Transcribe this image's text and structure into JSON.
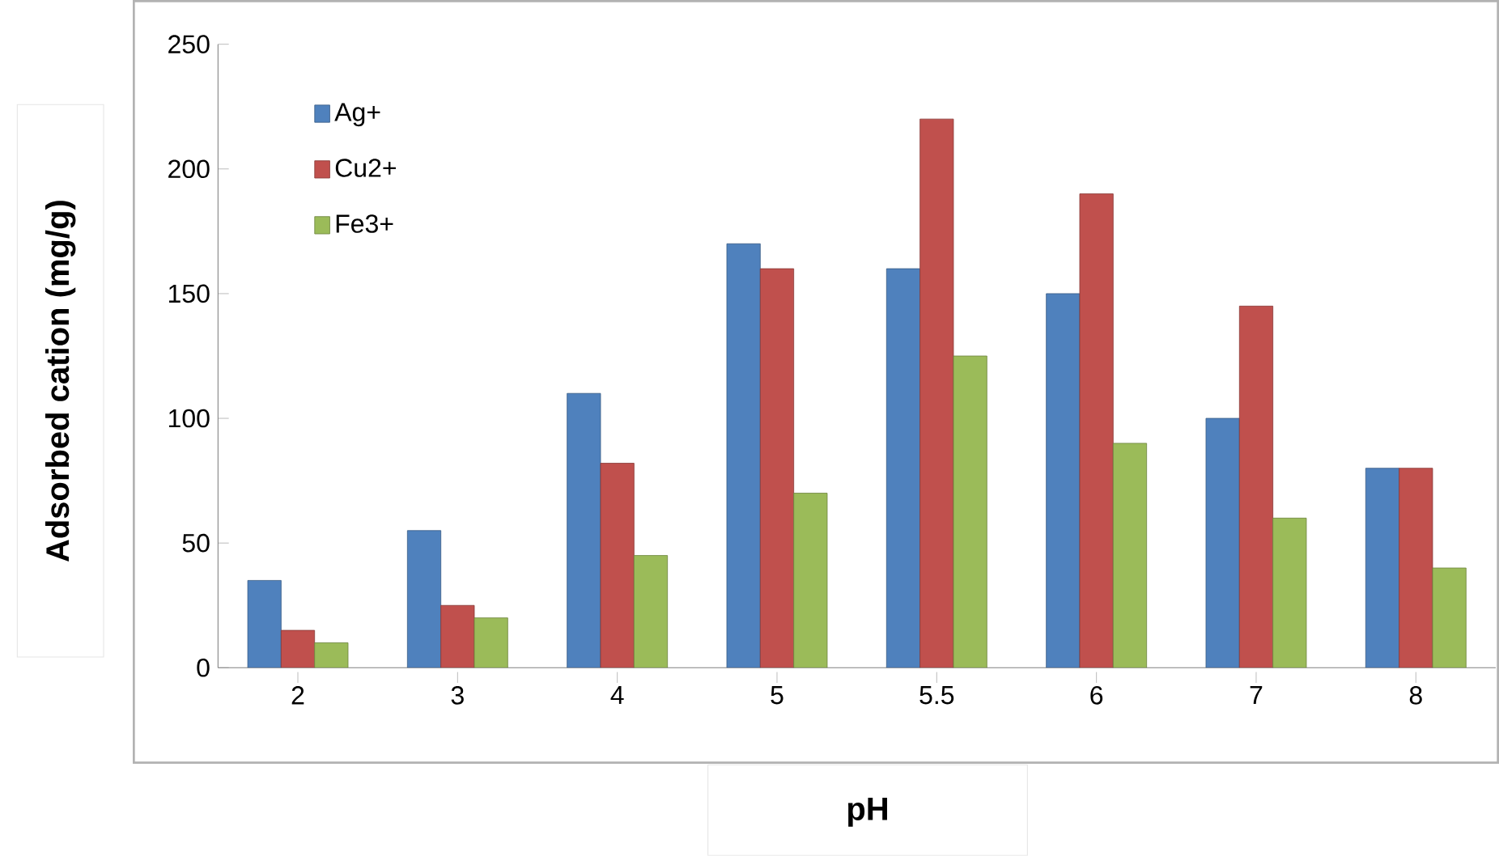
{
  "chart_data": {
    "type": "bar",
    "xlabel": "pH",
    "ylabel": "Adsorbed cation (mg/g)",
    "categories": [
      "2",
      "3",
      "4",
      "5",
      "5.5",
      "6",
      "7",
      "8"
    ],
    "series": [
      {
        "name": "Ag+",
        "color": "#4f81bd",
        "values": [
          35,
          55,
          110,
          170,
          160,
          150,
          100,
          80
        ]
      },
      {
        "name": "Cu2+",
        "color": "#c0504d",
        "values": [
          15,
          25,
          82,
          160,
          220,
          190,
          145,
          80
        ]
      },
      {
        "name": "Fe3+",
        "color": "#9bbb59",
        "values": [
          10,
          20,
          45,
          70,
          125,
          90,
          60,
          40
        ]
      }
    ],
    "ylim": [
      0,
      250
    ],
    "yticks": [
      0,
      50,
      100,
      150,
      200,
      250
    ],
    "grid": false,
    "legend": "top left"
  }
}
